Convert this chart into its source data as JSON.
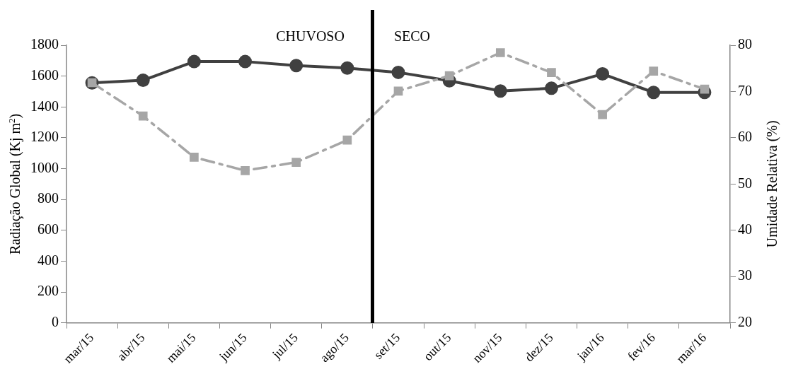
{
  "chart_data": {
    "type": "line",
    "categories": [
      "mar/15",
      "abr/15",
      "mai/15",
      "jun/15",
      "jul/15",
      "ago/15",
      "set/15",
      "out/15",
      "nov/15",
      "dez/15",
      "jan/16",
      "fev/16",
      "mar/16"
    ],
    "series": [
      {
        "color": "#404040",
        "marker": "circle",
        "line_style": "solid",
        "values": [
          1556,
          1573,
          1694,
          1694,
          1668,
          1652,
          1624,
          1570,
          1503,
          1521,
          1614,
          1494,
          1494
        ]
      },
      {
        "color": "#a6a6a6",
        "marker": "square",
        "line_style": "dashed",
        "axis": "y2",
        "values": [
          71.9,
          64.7,
          55.8,
          52.9,
          54.7,
          59.5,
          70.1,
          73.4,
          78.4,
          74.1,
          65,
          74.4,
          70.5
        ]
      }
    ],
    "ylabel": "Radiação Global (Kj m$^{2}$)",
    "y2label": "Umidade Relativa (%)",
    "ylim": [
      0,
      1800
    ],
    "yticks": [
      0,
      200,
      400,
      600,
      800,
      1000,
      1200,
      1400,
      1600,
      1800
    ],
    "y2lim": [
      20,
      80
    ],
    "y2ticks": [
      20,
      30,
      40,
      50,
      60,
      70,
      80
    ],
    "annotations": [
      "CHUVOSO",
      "SECO"
    ],
    "grid": false,
    "legend": false
  }
}
